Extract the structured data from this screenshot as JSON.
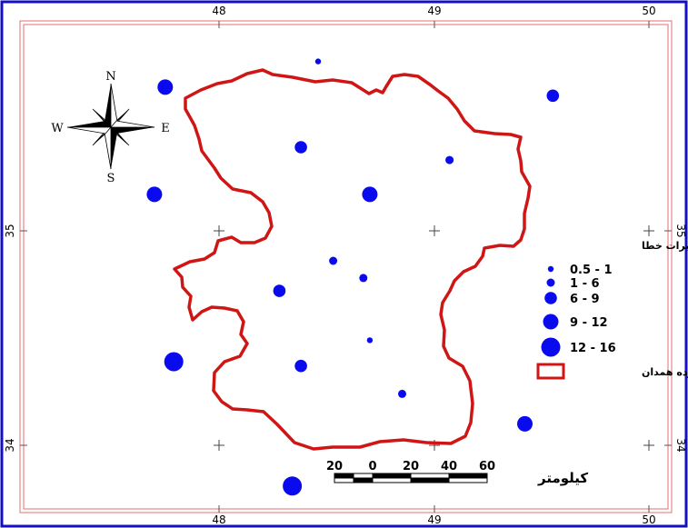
{
  "colors": {
    "outer_border": "#1010c8",
    "frame": "#e07070",
    "boundary": "#d01515",
    "points": "#0a0aee",
    "text": "#000000"
  },
  "graticule": {
    "longitudes": [
      "48",
      "49",
      "50"
    ],
    "latitudes": [
      "35",
      "34"
    ]
  },
  "north_arrow": {
    "n": "N",
    "s": "S",
    "e": "E",
    "w": "W"
  },
  "legend": {
    "title": "دامنه تغییرات خطا",
    "items": [
      {
        "label": "0.5 - 1",
        "size_class": 1
      },
      {
        "label": "1 - 6",
        "size_class": 2
      },
      {
        "label": "6 - 9",
        "size_class": 3
      },
      {
        "label": "9 - 12",
        "size_class": 4
      },
      {
        "label": "12 - 16",
        "size_class": 5
      }
    ],
    "boundary_label": "محدوده همدان"
  },
  "scale_bar": {
    "ticks": [
      "20",
      "0",
      "20",
      "40",
      "60"
    ],
    "unit": "کیلومتر"
  },
  "stations": [
    {
      "lon": 48.46,
      "lat": 35.79,
      "size_class": 1
    },
    {
      "lon": 47.75,
      "lat": 35.67,
      "size_class": 4
    },
    {
      "lon": 49.55,
      "lat": 35.63,
      "size_class": 3
    },
    {
      "lon": 48.38,
      "lat": 35.39,
      "size_class": 3
    },
    {
      "lon": 49.07,
      "lat": 35.33,
      "size_class": 2
    },
    {
      "lon": 47.7,
      "lat": 35.17,
      "size_class": 4
    },
    {
      "lon": 48.7,
      "lat": 35.17,
      "size_class": 4
    },
    {
      "lon": 48.53,
      "lat": 34.86,
      "size_class": 2
    },
    {
      "lon": 48.67,
      "lat": 34.78,
      "size_class": 2
    },
    {
      "lon": 48.28,
      "lat": 34.72,
      "size_class": 3
    },
    {
      "lon": 48.7,
      "lat": 34.49,
      "size_class": 1
    },
    {
      "lon": 47.79,
      "lat": 34.39,
      "size_class": 5
    },
    {
      "lon": 48.38,
      "lat": 34.37,
      "size_class": 3
    },
    {
      "lon": 48.85,
      "lat": 34.24,
      "size_class": 2
    },
    {
      "lon": 49.42,
      "lat": 34.1,
      "size_class": 4
    },
    {
      "lon": 48.34,
      "lat": 33.81,
      "size_class": 5
    }
  ]
}
